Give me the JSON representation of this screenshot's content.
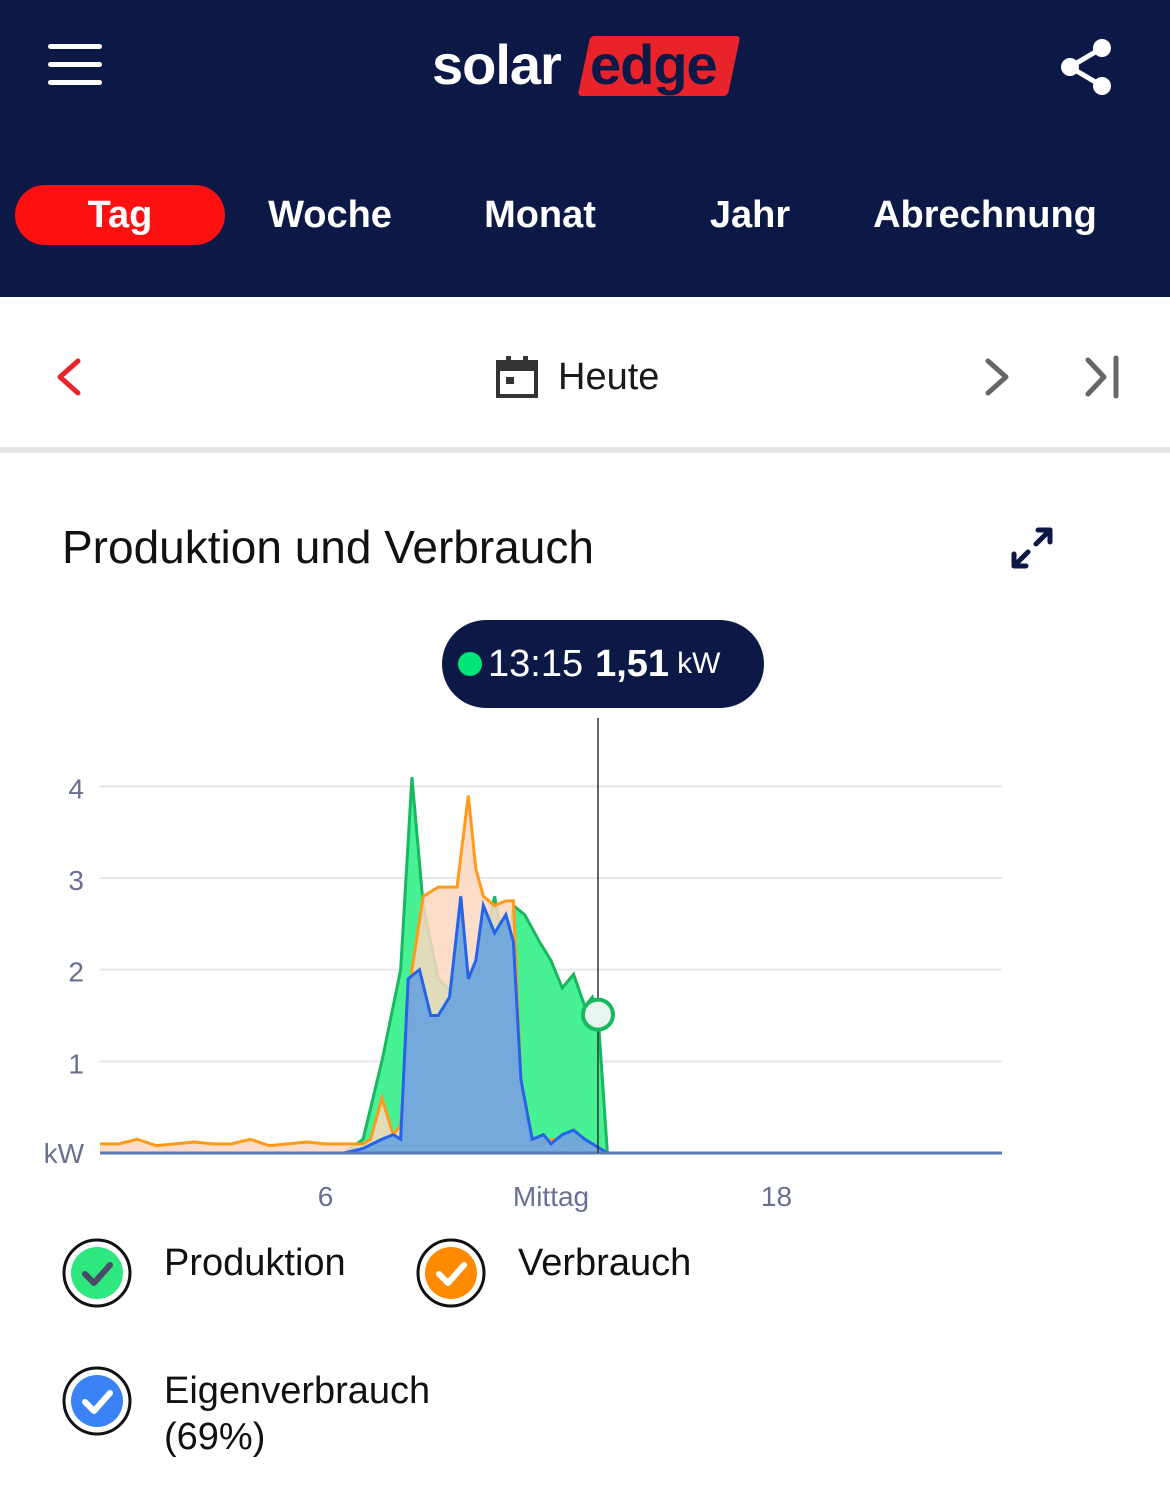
{
  "header": {
    "logo_text_solar": "solar",
    "logo_text_edge": "edge",
    "menu_icon": "hamburger-icon",
    "share_icon": "share-icon"
  },
  "tabs": [
    {
      "label": "Tag",
      "active": true
    },
    {
      "label": "Woche",
      "active": false
    },
    {
      "label": "Monat",
      "active": false
    },
    {
      "label": "Jahr",
      "active": false
    },
    {
      "label": "Abrechnung",
      "active": false
    }
  ],
  "datebar": {
    "label": "Heute",
    "calendar_icon": "calendar-icon"
  },
  "chart": {
    "title": "Produktion und Verbrauch",
    "tooltip_time": "13:15",
    "tooltip_value": "1,51",
    "tooltip_unit": "kW"
  },
  "legend": [
    {
      "label": "Produktion",
      "color": "#2ee87f"
    },
    {
      "label": "Verbrauch",
      "color": "#ff8a00"
    },
    {
      "label": "Eigenverbrauch",
      "sublabel": "(69%)",
      "color": "#3b82f6"
    }
  ],
  "colors": {
    "header_bg": "#0c1845",
    "accent_red": "#ff1010",
    "production": "#2ee87f",
    "consumption": "#ff9a1a",
    "self_consumption": "#3b74d8"
  },
  "chart_data": {
    "type": "area",
    "ylabel": "kW",
    "xlabel": "",
    "y_ticks": [
      "4",
      "3",
      "2",
      "1",
      "kW"
    ],
    "x_ticks": [
      "6",
      "Mittag",
      "18"
    ],
    "xlim": [
      0,
      24
    ],
    "ylim": [
      0,
      4.2
    ],
    "series": [
      {
        "name": "Produktion",
        "x": [
          0,
          6.5,
          7.0,
          7.5,
          8.0,
          8.3,
          8.6,
          9.0,
          9.5,
          10.0,
          10.2,
          10.5,
          10.8,
          11.0,
          11.3,
          11.7,
          12.0,
          12.3,
          12.6,
          12.9,
          13.1,
          13.25,
          13.5,
          14,
          24
        ],
        "y": [
          0,
          0,
          0.15,
          1.0,
          2.0,
          4.1,
          2.7,
          1.9,
          1.7,
          2.0,
          2.2,
          2.8,
          2.1,
          2.7,
          2.6,
          2.3,
          2.1,
          1.8,
          1.95,
          1.6,
          1.7,
          1.51,
          0.0,
          0,
          0
        ]
      },
      {
        "name": "Verbrauch",
        "x": [
          0,
          0.5,
          1,
          1.5,
          2,
          2.5,
          3,
          3.5,
          4,
          4.5,
          5,
          5.5,
          6,
          6.5,
          7.0,
          7.2,
          7.5,
          7.8,
          8.0,
          8.3,
          8.6,
          9.0,
          9.5,
          9.8,
          10.0,
          10.2,
          10.5,
          10.8,
          11.0,
          11.2,
          11.5,
          11.8,
          12.0,
          12.5,
          13.0,
          13.25,
          13.5,
          14,
          24
        ],
        "y": [
          0.1,
          0.1,
          0.15,
          0.08,
          0.1,
          0.12,
          0.1,
          0.1,
          0.15,
          0.08,
          0.1,
          0.12,
          0.1,
          0.1,
          0.1,
          0.15,
          0.6,
          0.2,
          0.3,
          2.0,
          2.8,
          2.9,
          2.9,
          3.9,
          3.1,
          2.8,
          2.7,
          2.75,
          2.75,
          0.8,
          0.15,
          0.1,
          0.15,
          0.1,
          0.1,
          0.05,
          0.0,
          0,
          0
        ]
      },
      {
        "name": "Eigenverbrauch",
        "x": [
          0,
          6.5,
          7.0,
          7.5,
          7.8,
          8.0,
          8.2,
          8.5,
          8.8,
          9.0,
          9.3,
          9.6,
          9.8,
          10.0,
          10.2,
          10.5,
          10.8,
          11.0,
          11.2,
          11.5,
          11.8,
          12.0,
          12.3,
          12.6,
          12.9,
          13.1,
          13.3,
          13.5,
          14,
          24
        ],
        "y": [
          0,
          0,
          0.05,
          0.15,
          0.2,
          0.15,
          1.9,
          2.0,
          1.5,
          1.5,
          1.7,
          2.8,
          1.9,
          2.1,
          2.7,
          2.4,
          2.6,
          2.3,
          0.8,
          0.15,
          0.2,
          0.1,
          0.2,
          0.25,
          0.15,
          0.1,
          0.05,
          0.0,
          0,
          0
        ]
      }
    ],
    "cursor": {
      "x": 13.25,
      "y": 1.51
    },
    "grid": true
  }
}
